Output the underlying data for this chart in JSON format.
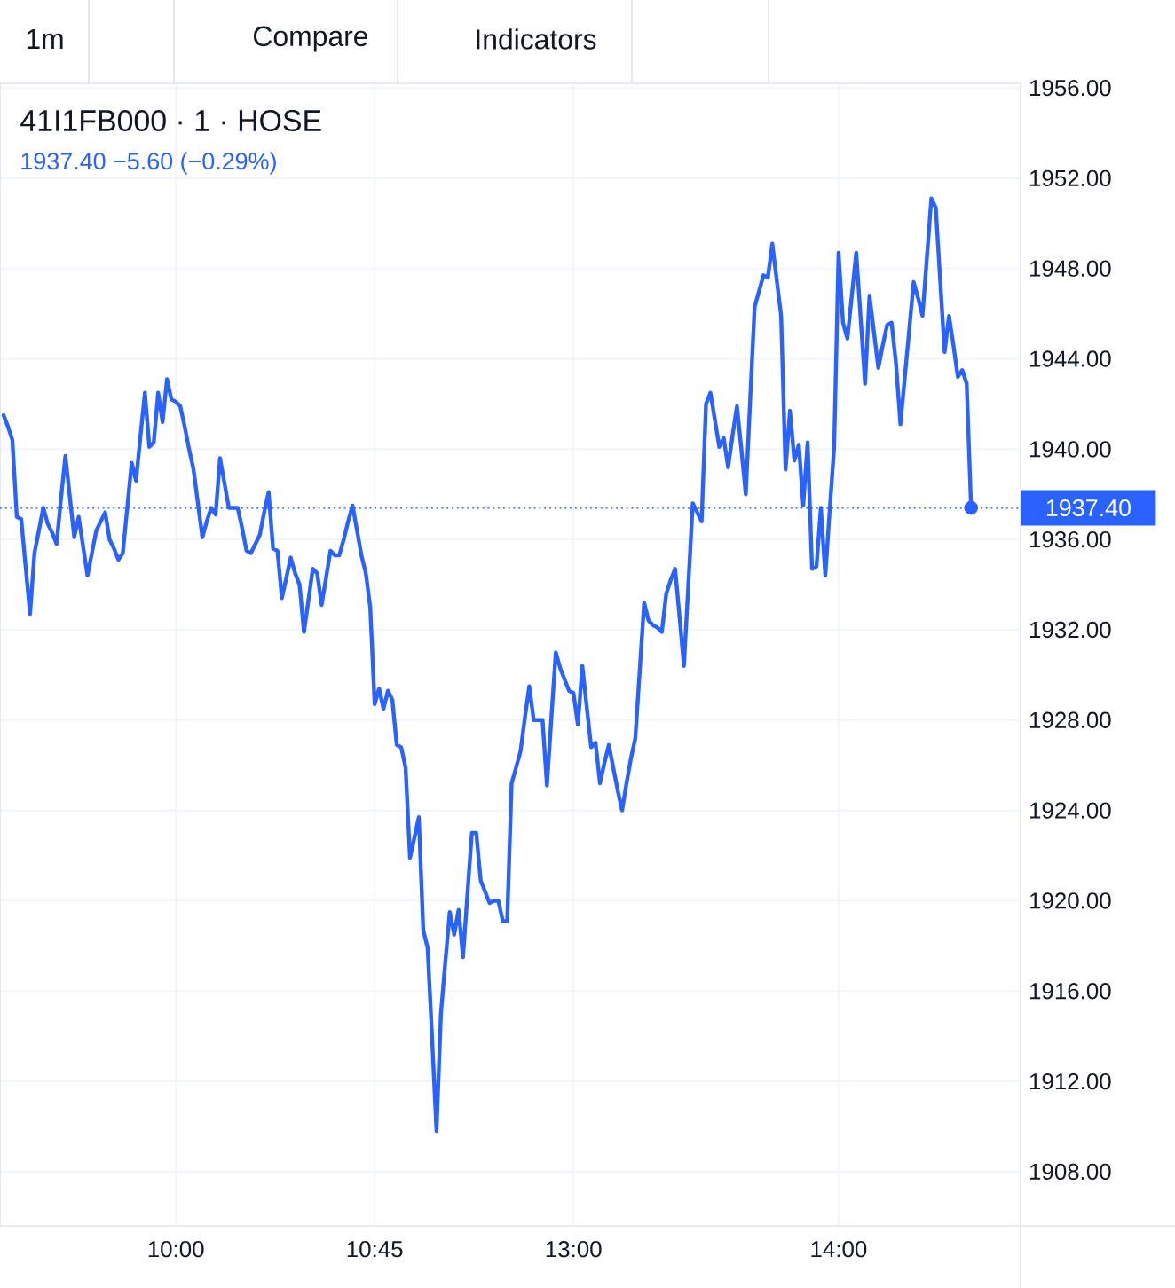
{
  "chart_data": {
    "type": "line",
    "title": "41I1FB000 · 1 · HOSE",
    "subtitle": "1937.40 −5.60 (−0.29%)",
    "annotations": [
      "1m",
      "Compare",
      "Indicators"
    ],
    "categories": [
      null,
      null,
      null,
      null,
      null,
      null,
      null,
      null,
      null,
      null,
      null,
      null,
      null,
      null,
      null,
      null,
      null,
      null,
      null,
      null,
      null,
      null,
      null,
      null,
      null,
      null,
      null,
      null,
      null,
      null,
      null,
      null,
      null,
      null,
      null,
      null,
      null,
      null,
      null,
      "10:00",
      null,
      null,
      null,
      null,
      null,
      null,
      null,
      null,
      null,
      null,
      null,
      null,
      null,
      null,
      null,
      null,
      null,
      null,
      null,
      null,
      null,
      null,
      null,
      null,
      null,
      null,
      null,
      null,
      null,
      null,
      null,
      null,
      null,
      null,
      null,
      null,
      null,
      null,
      null,
      null,
      null,
      null,
      null,
      null,
      "10:45",
      null,
      null,
      null,
      null,
      null,
      null,
      null,
      null,
      null,
      null,
      null,
      null,
      null,
      null,
      null,
      null,
      null,
      null,
      null,
      null,
      null,
      null,
      null,
      null,
      null,
      null,
      null,
      null,
      null,
      null,
      null,
      null,
      null,
      null,
      null,
      null,
      null,
      null,
      null,
      null,
      null,
      null,
      null,
      null,
      "13:00",
      null,
      null,
      null,
      null,
      null,
      null,
      null,
      null,
      null,
      null,
      null,
      null,
      null,
      null,
      null,
      null,
      null,
      null,
      null,
      null,
      null,
      null,
      null,
      null,
      null,
      null,
      null,
      null,
      null,
      null,
      null,
      null,
      null,
      null,
      null,
      null,
      null,
      null,
      null,
      null,
      null,
      null,
      null,
      null,
      null,
      null,
      null,
      null,
      null,
      null,
      null,
      null,
      null,
      null,
      null,
      null,
      null,
      null,
      null,
      "14:00",
      null,
      null,
      null,
      null,
      null,
      null,
      null,
      null,
      null,
      null,
      null,
      null,
      null,
      null,
      null,
      null,
      null,
      null,
      null,
      null,
      null,
      null,
      null,
      null,
      null,
      null,
      null,
      null,
      null,
      null
    ],
    "ylim": [
      1905.6,
      1956.2
    ],
    "yticks": [
      {
        "value": 1908,
        "label": "1908.00"
      },
      {
        "value": 1912,
        "label": "1912.00"
      },
      {
        "value": 1916,
        "label": "1916.00"
      },
      {
        "value": 1920,
        "label": "1920.00"
      },
      {
        "value": 1924,
        "label": "1924.00"
      },
      {
        "value": 1928,
        "label": "1928.00"
      },
      {
        "value": 1932,
        "label": "1932.00"
      },
      {
        "value": 1936,
        "label": "1936.00"
      },
      {
        "value": 1940,
        "label": "1940.00"
      },
      {
        "value": 1944,
        "label": "1944.00"
      },
      {
        "value": 1948,
        "label": "1948.00"
      },
      {
        "value": 1952,
        "label": "1952.00"
      },
      {
        "value": 1956,
        "label": "1956.00"
      }
    ],
    "grid": true,
    "series": [
      {
        "color": "#2962ff",
        "values": [
          1941.5,
          1941.0,
          1940.4,
          1937.0,
          1936.9,
          1934.8,
          1932.7,
          1935.4,
          1936.4,
          1937.4,
          1936.7,
          1936.3,
          1935.8,
          1937.8,
          1939.7,
          1937.9,
          1936.1,
          1937.0,
          1935.7,
          1934.4,
          1935.4,
          1936.4,
          1936.8,
          1937.2,
          1936.0,
          1935.6,
          1935.1,
          1935.4,
          1937.4,
          1939.4,
          1938.6,
          1940.6,
          1942.5,
          1940.1,
          1940.3,
          1942.5,
          1941.2,
          1943.1,
          1942.2,
          1942.1,
          1941.9,
          1941.0,
          1940.0,
          1939.1,
          1937.6,
          1936.1,
          1936.8,
          1937.4,
          1937.1,
          1939.6,
          1938.5,
          1937.4,
          1937.4,
          1937.4,
          1936.5,
          1935.5,
          1935.4,
          1935.8,
          1936.2,
          1937.2,
          1938.1,
          1935.6,
          1935.5,
          1933.4,
          1934.3,
          1935.2,
          1934.5,
          1934.0,
          1931.9,
          1933.3,
          1934.7,
          1934.5,
          1933.1,
          1934.3,
          1935.5,
          1935.3,
          1935.3,
          1936.0,
          1936.8,
          1937.5,
          1936.4,
          1935.3,
          1934.5,
          1933.0,
          1928.7,
          1929.4,
          1928.5,
          1929.3,
          1928.9,
          1926.9,
          1926.8,
          1925.9,
          1921.9,
          1922.8,
          1923.7,
          1918.7,
          1917.9,
          1913.9,
          1909.8,
          1915.0,
          1917.3,
          1919.5,
          1918.5,
          1919.6,
          1917.5,
          1920.3,
          1923.0,
          1923.0,
          1920.9,
          1920.4,
          1919.9,
          1920.0,
          1920.0,
          1919.1,
          1919.1,
          1925.2,
          1925.9,
          1926.6,
          1928.1,
          1929.5,
          1928.0,
          1928.0,
          1928.0,
          1925.1,
          1928.1,
          1931.0,
          1930.3,
          1929.8,
          1929.3,
          1929.2,
          1927.8,
          1930.4,
          1928.6,
          1926.8,
          1927.0,
          1925.2,
          1926.1,
          1926.9,
          1925.9,
          1924.9,
          1924.0,
          1925.2,
          1926.3,
          1927.2,
          1930.2,
          1933.2,
          1932.4,
          1932.2,
          1932.1,
          1931.9,
          1933.6,
          1934.2,
          1934.7,
          1932.6,
          1930.4,
          1934.0,
          1937.6,
          1937.2,
          1936.8,
          1942.0,
          1942.5,
          1941.3,
          1940.1,
          1940.5,
          1939.2,
          1940.6,
          1941.9,
          1940.0,
          1938.0,
          1942.2,
          1946.3,
          1947.0,
          1947.7,
          1947.6,
          1949.1,
          1947.5,
          1945.9,
          1939.1,
          1941.7,
          1939.5,
          1940.2,
          1937.5,
          1940.3,
          1934.7,
          1934.8,
          1937.4,
          1934.4,
          1937.3,
          1940.1,
          1948.7,
          1945.6,
          1944.9,
          1946.8,
          1948.7,
          1945.8,
          1942.9,
          1946.8,
          1945.2,
          1943.6,
          1944.6,
          1945.5,
          1945.6,
          1943.8,
          1941.1,
          1943.2,
          1945.3,
          1947.4,
          1946.7,
          1945.9,
          1948.5,
          1951.1,
          1950.7,
          1947.5,
          1944.3,
          1945.9,
          1944.6,
          1943.2,
          1943.5,
          1942.9,
          1937.4
        ]
      },
      {
        "type": "scatter",
        "color": "#2962ff",
        "marker": "circle",
        "values": [
          null,
          null,
          null,
          null,
          null,
          null,
          null,
          null,
          null,
          null,
          null,
          null,
          null,
          null,
          null,
          null,
          null,
          null,
          null,
          null,
          null,
          null,
          null,
          null,
          null,
          null,
          null,
          null,
          null,
          null,
          null,
          null,
          null,
          null,
          null,
          null,
          null,
          null,
          null,
          null,
          null,
          null,
          null,
          null,
          null,
          null,
          null,
          null,
          null,
          null,
          null,
          null,
          null,
          null,
          null,
          null,
          null,
          null,
          null,
          null,
          null,
          null,
          null,
          null,
          null,
          null,
          null,
          null,
          null,
          null,
          null,
          null,
          null,
          null,
          null,
          null,
          null,
          null,
          null,
          null,
          null,
          null,
          null,
          null,
          null,
          null,
          null,
          null,
          null,
          null,
          null,
          null,
          null,
          null,
          null,
          null,
          null,
          null,
          null,
          null,
          null,
          null,
          null,
          null,
          null,
          null,
          null,
          null,
          null,
          null,
          null,
          null,
          null,
          null,
          null,
          null,
          null,
          null,
          null,
          null,
          null,
          null,
          null,
          null,
          null,
          null,
          null,
          null,
          null,
          null,
          null,
          null,
          null,
          null,
          null,
          null,
          null,
          null,
          null,
          null,
          null,
          null,
          null,
          null,
          null,
          null,
          null,
          null,
          null,
          null,
          null,
          null,
          null,
          null,
          null,
          null,
          null,
          null,
          null,
          null,
          null,
          null,
          null,
          null,
          null,
          null,
          null,
          null,
          null,
          null,
          null,
          null,
          null,
          null,
          null,
          null,
          null,
          null,
          null,
          null,
          null,
          null,
          null,
          null,
          null,
          null,
          null,
          null,
          null,
          null,
          null,
          null,
          null,
          null,
          null,
          null,
          null,
          null,
          null,
          null,
          null,
          null,
          null,
          null,
          null,
          null,
          null,
          null,
          null,
          null,
          null,
          null,
          null,
          null,
          null,
          null,
          null,
          null,
          null,
          1937.4
        ]
      }
    ],
    "ref_lines": [
      {
        "axis": "y",
        "value": 1937.4,
        "label": "1937.40",
        "color": "#2962ff",
        "line_style": "dotted"
      }
    ]
  }
}
